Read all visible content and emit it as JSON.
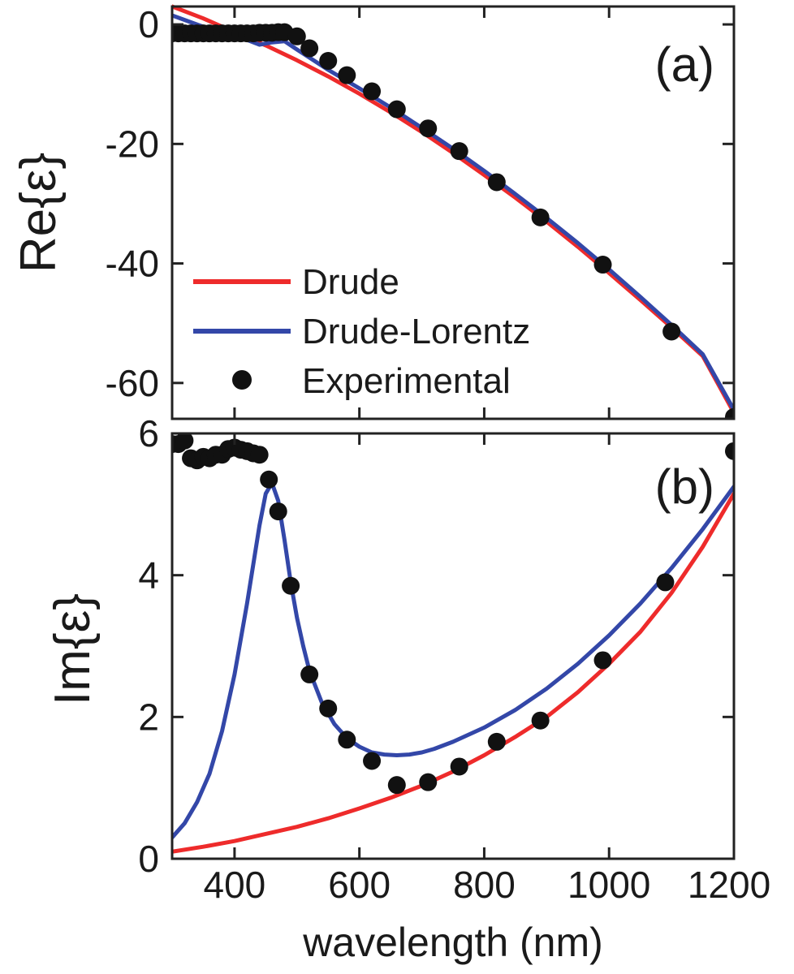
{
  "chart_data": [
    {
      "type": "line",
      "panel_label": "(a)",
      "ylabel": "Re{ε}",
      "xlim": [
        300,
        1200
      ],
      "ylim": [
        -66,
        3
      ],
      "yticks": [
        0,
        -20,
        -40,
        -60
      ],
      "y_tick_labels": [
        "0",
        "-20",
        "-40",
        "-60"
      ],
      "legend": {
        "placement": "bottom-left",
        "entries": [
          {
            "label": "Drude",
            "color": "#ee2b2b",
            "kind": "line"
          },
          {
            "label": "Drude-Lorentz",
            "color": "#3347a8",
            "kind": "line"
          },
          {
            "label": "Experimental",
            "color": "#111111",
            "kind": "marker"
          }
        ]
      },
      "series": [
        {
          "name": "Drude",
          "color": "#ee2b2b",
          "x": [
            300,
            350,
            400,
            450,
            500,
            550,
            600,
            650,
            700,
            750,
            800,
            850,
            900,
            950,
            1000,
            1050,
            1100,
            1150,
            1200
          ],
          "y": [
            3.0,
            1.0,
            -1.3,
            -3.5,
            -6.0,
            -8.7,
            -11.6,
            -14.7,
            -18.0,
            -21.5,
            -25.2,
            -29.0,
            -33.0,
            -37.2,
            -41.6,
            -46.1,
            -50.7,
            -55.5,
            -65.0
          ]
        },
        {
          "name": "Drude-Lorentz",
          "color": "#3347a8",
          "x": [
            300,
            350,
            400,
            420,
            440,
            460,
            480,
            500,
            550,
            600,
            650,
            700,
            750,
            800,
            850,
            900,
            950,
            1000,
            1050,
            1100,
            1150,
            1200
          ],
          "y": [
            1.5,
            -0.4,
            -1.8,
            -2.6,
            -3.4,
            -3.0,
            -2.8,
            -4.2,
            -7.6,
            -10.7,
            -13.9,
            -17.3,
            -20.8,
            -24.5,
            -28.4,
            -32.4,
            -36.6,
            -41.0,
            -45.6,
            -50.3,
            -55.2,
            -64.5
          ]
        },
        {
          "name": "Experimental",
          "color": "#111111",
          "x": [
            300,
            310,
            320,
            330,
            340,
            350,
            360,
            370,
            380,
            390,
            400,
            410,
            420,
            430,
            440,
            450,
            460,
            470,
            480,
            500,
            520,
            550,
            580,
            620,
            660,
            710,
            760,
            820,
            890,
            990,
            1100,
            1200
          ],
          "y": [
            -1.5,
            -1.5,
            -1.5,
            -1.5,
            -1.5,
            -1.5,
            -1.5,
            -1.5,
            -1.5,
            -1.5,
            -1.5,
            -1.5,
            -1.5,
            -1.5,
            -1.4,
            -1.4,
            -1.4,
            -1.3,
            -1.3,
            -2.0,
            -4.0,
            -6.1,
            -8.5,
            -11.2,
            -14.2,
            -17.4,
            -21.2,
            -26.4,
            -32.3,
            -40.2,
            -51.4,
            -65.7
          ]
        }
      ]
    },
    {
      "type": "line",
      "panel_label": "(b)",
      "ylabel": "Im{ε}",
      "xlabel": "wavelength (nm)",
      "xlim": [
        300,
        1200
      ],
      "ylim": [
        0,
        6
      ],
      "xticks": [
        400,
        600,
        800,
        1000,
        1200
      ],
      "x_tick_labels": [
        "400",
        "600",
        "800",
        "1000",
        "1200"
      ],
      "yticks": [
        0,
        2,
        4,
        6
      ],
      "y_tick_labels": [
        "0",
        "2",
        "4",
        "6"
      ],
      "series": [
        {
          "name": "Drude",
          "color": "#ee2b2b",
          "x": [
            300,
            350,
            400,
            450,
            500,
            550,
            600,
            650,
            700,
            750,
            800,
            850,
            900,
            950,
            1000,
            1050,
            1100,
            1150,
            1200
          ],
          "y": [
            0.1,
            0.17,
            0.25,
            0.35,
            0.45,
            0.57,
            0.71,
            0.86,
            1.03,
            1.23,
            1.46,
            1.72,
            2.0,
            2.35,
            2.75,
            3.2,
            3.75,
            4.4,
            5.15
          ]
        },
        {
          "name": "Drude-Lorentz",
          "color": "#3347a8",
          "x": [
            300,
            320,
            340,
            360,
            380,
            400,
            420,
            440,
            450,
            460,
            470,
            480,
            490,
            500,
            510,
            520,
            540,
            560,
            580,
            600,
            620,
            640,
            660,
            680,
            700,
            720,
            750,
            800,
            850,
            900,
            950,
            1000,
            1050,
            1100,
            1150,
            1200
          ],
          "y": [
            0.3,
            0.5,
            0.8,
            1.2,
            1.8,
            2.6,
            3.6,
            4.7,
            5.15,
            5.3,
            5.05,
            4.5,
            3.9,
            3.4,
            3.0,
            2.65,
            2.2,
            1.9,
            1.7,
            1.58,
            1.5,
            1.47,
            1.46,
            1.47,
            1.5,
            1.55,
            1.65,
            1.85,
            2.1,
            2.4,
            2.75,
            3.15,
            3.6,
            4.1,
            4.65,
            5.25
          ]
        },
        {
          "name": "Experimental",
          "color": "#111111",
          "x": [
            300,
            310,
            320,
            330,
            340,
            350,
            360,
            370,
            380,
            390,
            400,
            410,
            420,
            430,
            440,
            455,
            470,
            490,
            520,
            550,
            580,
            620,
            660,
            710,
            760,
            820,
            890,
            990,
            1090,
            1200
          ],
          "y": [
            5.85,
            5.85,
            5.9,
            5.65,
            5.62,
            5.67,
            5.65,
            5.7,
            5.7,
            5.78,
            5.8,
            5.77,
            5.75,
            5.72,
            5.7,
            5.35,
            4.9,
            3.85,
            2.6,
            2.12,
            1.68,
            1.38,
            1.04,
            1.08,
            1.3,
            1.65,
            1.95,
            2.8,
            3.9,
            5.75
          ]
        }
      ]
    }
  ]
}
